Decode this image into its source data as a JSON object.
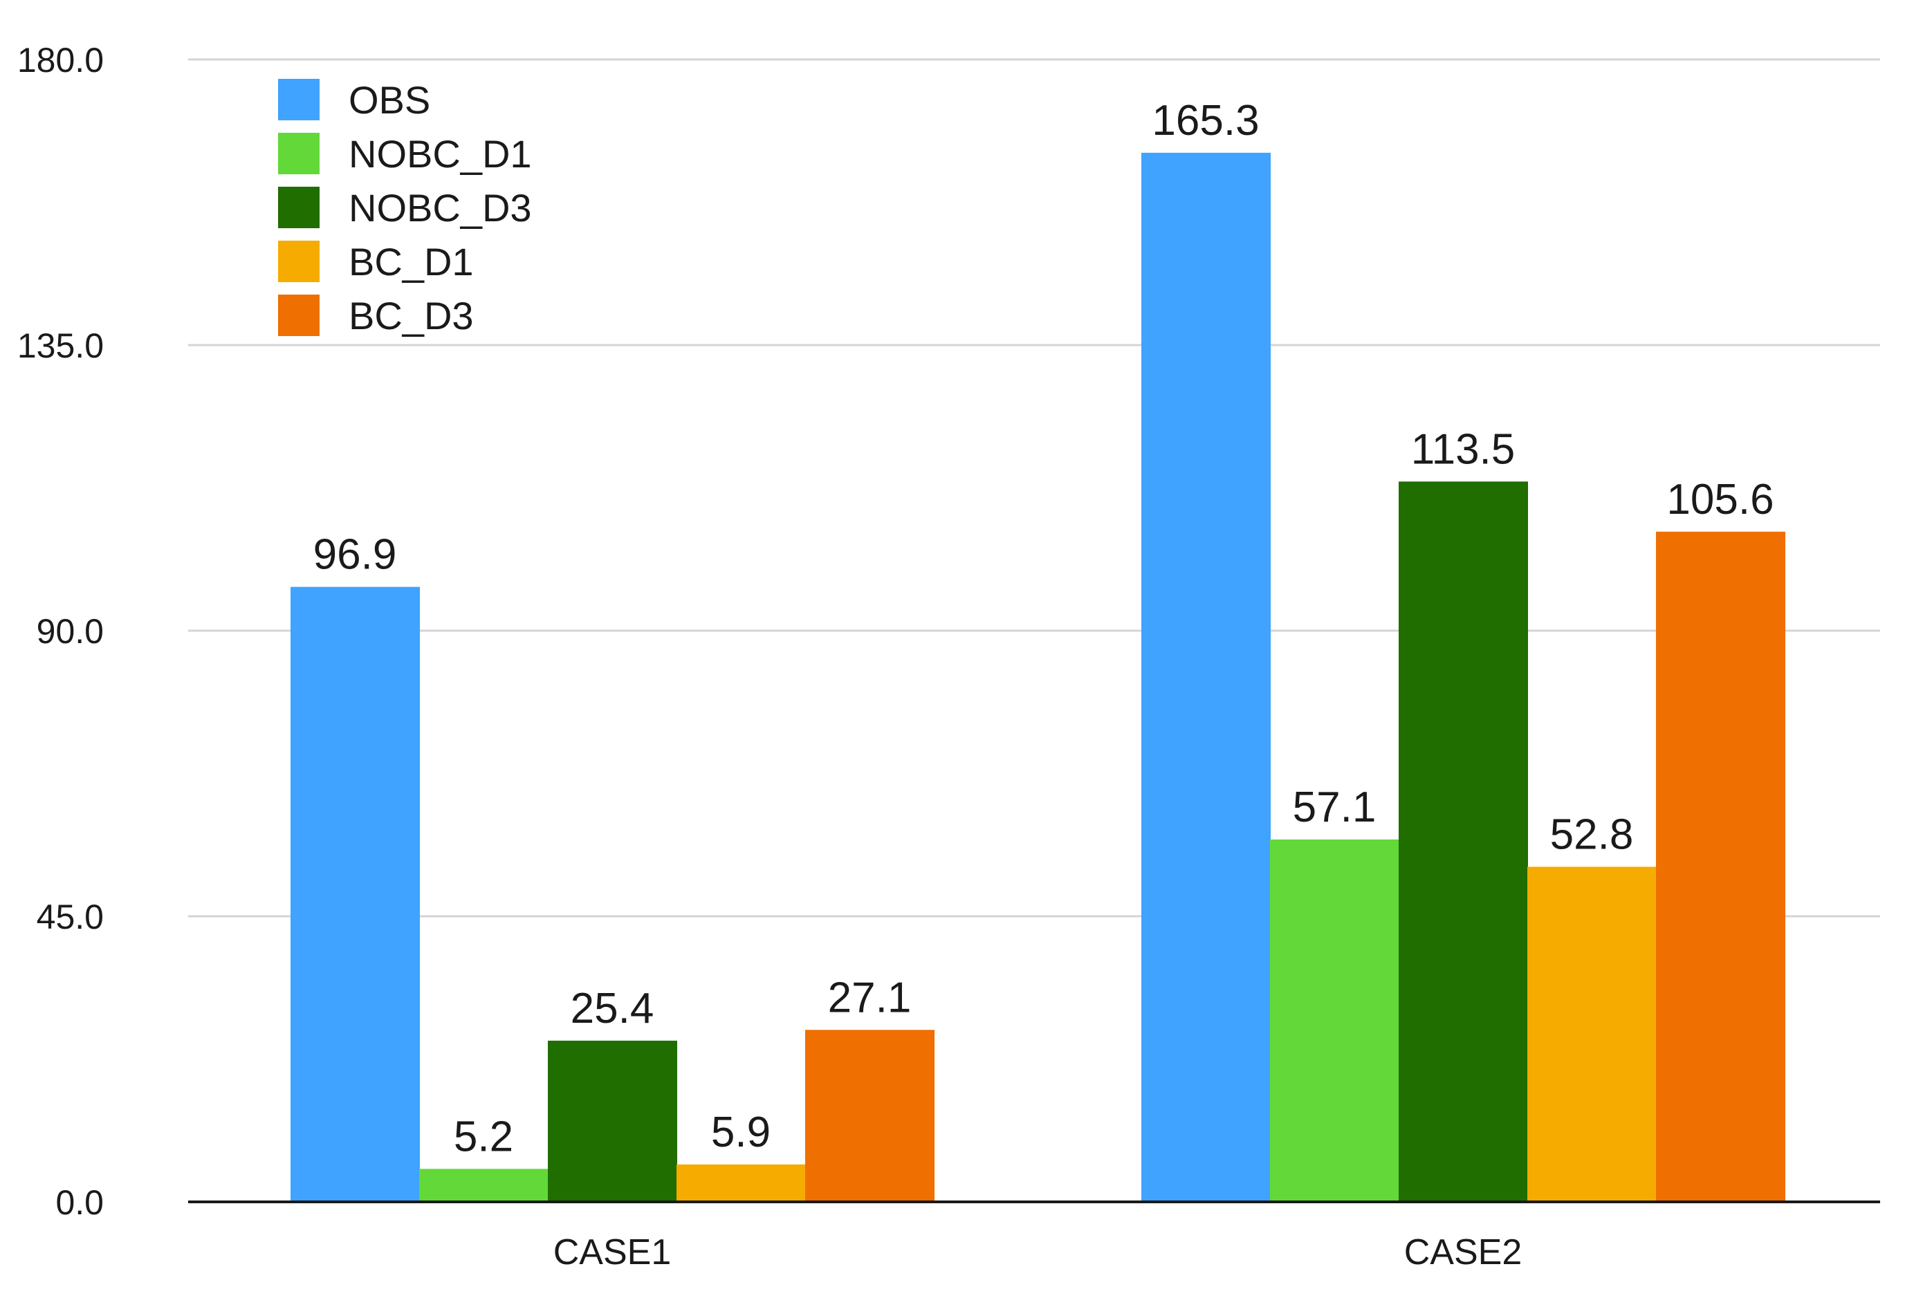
{
  "chart_data": {
    "type": "bar",
    "title": "",
    "xlabel": "",
    "ylabel": "",
    "ylim": [
      0,
      180
    ],
    "yticks": [
      "0.0",
      "45.0",
      "90.0",
      "135.0",
      "180.0"
    ],
    "grid": true,
    "legend_position": "top-left",
    "categories": [
      "CASE1",
      "CASE2"
    ],
    "series": [
      {
        "name": "OBS",
        "color": "#3fa3ff",
        "values": [
          96.9,
          165.3
        ],
        "labels": [
          "96.9",
          "165.3"
        ]
      },
      {
        "name": "NOBC_D1",
        "color": "#62d938",
        "values": [
          5.2,
          57.1
        ],
        "labels": [
          "5.2",
          "57.1"
        ]
      },
      {
        "name": "NOBC_D3",
        "color": "#206e00",
        "values": [
          25.4,
          113.5
        ],
        "labels": [
          "25.4",
          "113.5"
        ]
      },
      {
        "name": "BC_D1",
        "color": "#f6ab00",
        "values": [
          5.9,
          52.8
        ],
        "labels": [
          "5.9",
          "52.8"
        ]
      },
      {
        "name": "BC_D3",
        "color": "#ef6f00",
        "values": [
          27.1,
          105.6
        ],
        "labels": [
          "27.1",
          "105.6"
        ]
      }
    ]
  }
}
